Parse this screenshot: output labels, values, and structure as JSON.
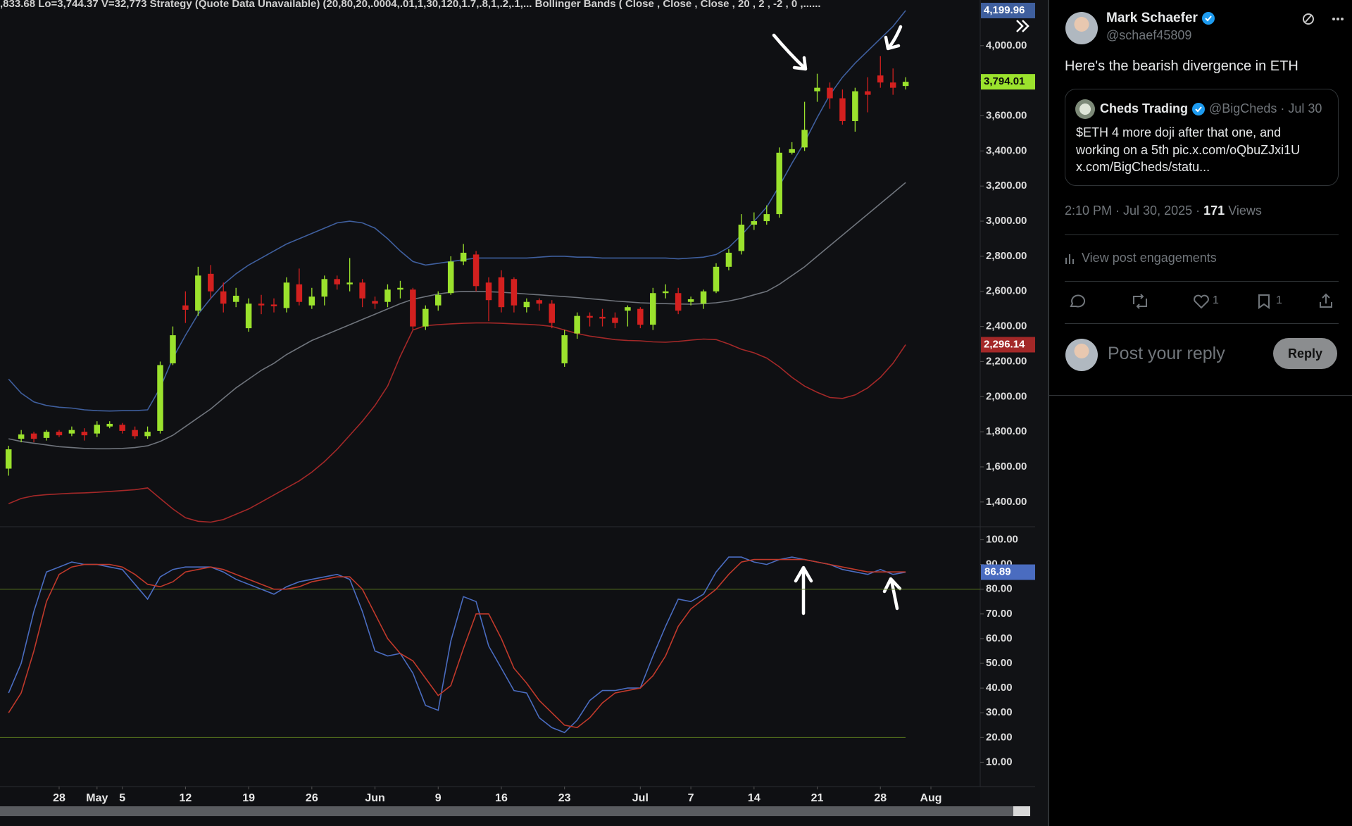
{
  "header": {
    "status": ",833.68  Lo=3,744.37  V=32,773  Strategy (Quote Data Unavailable) (20,80,20,.0004,.01,1,30,120,1.7,.8,1,.2,.1,...   Bollinger Bands ( Close , Close , Close , 20 , 2 , -2 , 0 ,......"
  },
  "chart_data": [
    {
      "type": "candlestick",
      "up_color": "#9be22d",
      "down_color": "#d3201f",
      "xlim": [
        -0.68,
        76.9
      ],
      "ylim": [
        1263,
        4260
      ],
      "yticks": [
        {
          "value": 1400,
          "label": "1,400.00"
        },
        {
          "value": 1600,
          "label": "1,600.00"
        },
        {
          "value": 1800,
          "label": "1,800.00"
        },
        {
          "value": 2000,
          "label": "2,000.00"
        },
        {
          "value": 2200,
          "label": "2,200.00"
        },
        {
          "value": 2400,
          "label": "2,400.00"
        },
        {
          "value": 2600,
          "label": "2,600.00"
        },
        {
          "value": 2800,
          "label": "2,800.00"
        },
        {
          "value": 3000,
          "label": "3,000.00"
        },
        {
          "value": 3200,
          "label": "3,200.00"
        },
        {
          "value": 3400,
          "label": "3,400.00"
        },
        {
          "value": 3600,
          "label": "3,600.00"
        },
        {
          "value": 3800,
          "label": "3,800.00"
        },
        {
          "value": 4000,
          "label": "4,000.00"
        }
      ],
      "open": [
        1590,
        1760,
        1790,
        1765,
        1800,
        1790,
        1800,
        1790,
        1830,
        1840,
        1810,
        1775,
        1805,
        2190,
        2520,
        2490,
        2700,
        2600,
        2540,
        2390,
        2530,
        2525,
        2505,
        2640,
        2520,
        2570,
        2670,
        2640,
        2650,
        2545,
        2540,
        2610,
        2610,
        2400,
        2520,
        2590,
        2770,
        2810,
        2650,
        2680,
        2670,
        2510,
        2550,
        2530,
        2190,
        2360,
        2460,
        2455,
        2450,
        2490,
        2500,
        2410,
        2590,
        2590,
        2540,
        2530,
        2600,
        2740,
        2830,
        2980,
        3000,
        3040,
        3390,
        3420,
        3740,
        3760,
        3700,
        3570,
        3740,
        3830,
        3790,
        3770
      ],
      "high": [
        1720,
        1810,
        1800,
        1810,
        1810,
        1830,
        1820,
        1860,
        1860,
        1850,
        1830,
        1830,
        2200,
        2400,
        2600,
        2740,
        2750,
        2650,
        2620,
        2560,
        2580,
        2560,
        2680,
        2730,
        2620,
        2690,
        2690,
        2790,
        2670,
        2570,
        2640,
        2660,
        2620,
        2520,
        2600,
        2800,
        2870,
        2830,
        2680,
        2720,
        2680,
        2560,
        2560,
        2550,
        2380,
        2480,
        2480,
        2500,
        2480,
        2520,
        2510,
        2620,
        2640,
        2620,
        2570,
        2610,
        2760,
        2840,
        3040,
        3050,
        3090,
        3420,
        3450,
        3680,
        3840,
        3790,
        3750,
        3760,
        3820,
        3940,
        3870,
        3820
      ],
      "low": [
        1550,
        1740,
        1740,
        1750,
        1770,
        1775,
        1750,
        1770,
        1820,
        1790,
        1760,
        1760,
        1790,
        2180,
        2420,
        2460,
        2560,
        2480,
        2510,
        2370,
        2470,
        2480,
        2480,
        2520,
        2500,
        2520,
        2610,
        2600,
        2510,
        2500,
        2510,
        2560,
        2380,
        2380,
        2490,
        2580,
        2750,
        2600,
        2430,
        2480,
        2480,
        2480,
        2490,
        2390,
        2170,
        2330,
        2400,
        2400,
        2390,
        2400,
        2390,
        2380,
        2560,
        2470,
        2520,
        2500,
        2590,
        2720,
        2810,
        2950,
        2980,
        3020,
        3380,
        3400,
        3680,
        3640,
        3550,
        3510,
        3620,
        3760,
        3720,
        3750
      ],
      "close": [
        1700,
        1785,
        1760,
        1800,
        1780,
        1810,
        1780,
        1840,
        1845,
        1805,
        1775,
        1800,
        2180,
        2350,
        2495,
        2690,
        2600,
        2530,
        2575,
        2530,
        2520,
        2515,
        2650,
        2540,
        2570,
        2670,
        2640,
        2650,
        2560,
        2530,
        2610,
        2620,
        2400,
        2500,
        2580,
        2770,
        2820,
        2630,
        2550,
        2510,
        2520,
        2540,
        2530,
        2420,
        2350,
        2460,
        2450,
        2445,
        2420,
        2510,
        2410,
        2590,
        2600,
        2490,
        2555,
        2600,
        2740,
        2820,
        2980,
        3000,
        3040,
        3390,
        3410,
        3520,
        3760,
        3700,
        3570,
        3740,
        3720,
        3790,
        3760,
        3794.01
      ],
      "last_label": "3,794.01",
      "overlays": [
        {
          "color": "#3f5f9e",
          "last_label": "4,199.96",
          "values": [
            2100,
            2020,
            1970,
            1950,
            1940,
            1935,
            1925,
            1920,
            1918,
            1920,
            1920,
            1925,
            2050,
            2220,
            2350,
            2470,
            2560,
            2640,
            2700,
            2750,
            2790,
            2830,
            2870,
            2900,
            2930,
            2960,
            2990,
            3000,
            2990,
            2960,
            2900,
            2830,
            2770,
            2750,
            2760,
            2770,
            2780,
            2790,
            2790,
            2790,
            2790,
            2790,
            2795,
            2800,
            2800,
            2795,
            2795,
            2790,
            2790,
            2790,
            2790,
            2790,
            2790,
            2785,
            2790,
            2795,
            2810,
            2850,
            2920,
            3000,
            3080,
            3200,
            3330,
            3450,
            3590,
            3720,
            3820,
            3900,
            3970,
            4040,
            4110,
            4199.96
          ]
        },
        {
          "color": "#6f747c",
          "values": [
            1760,
            1745,
            1735,
            1725,
            1715,
            1710,
            1705,
            1703,
            1703,
            1705,
            1710,
            1720,
            1745,
            1780,
            1830,
            1880,
            1930,
            1990,
            2050,
            2100,
            2150,
            2190,
            2240,
            2280,
            2320,
            2350,
            2380,
            2410,
            2440,
            2470,
            2500,
            2530,
            2555,
            2570,
            2585,
            2595,
            2600,
            2600,
            2598,
            2595,
            2590,
            2585,
            2580,
            2575,
            2570,
            2565,
            2558,
            2552,
            2545,
            2540,
            2535,
            2532,
            2530,
            2528,
            2527,
            2530,
            2535,
            2545,
            2560,
            2580,
            2600,
            2640,
            2690,
            2740,
            2800,
            2860,
            2920,
            2980,
            3040,
            3100,
            3160,
            3220
          ]
        },
        {
          "color": "#a32828",
          "last_label": "2,296.14",
          "values": [
            1390,
            1420,
            1435,
            1442,
            1446,
            1450,
            1452,
            1455,
            1460,
            1465,
            1470,
            1480,
            1420,
            1360,
            1310,
            1290,
            1285,
            1300,
            1330,
            1360,
            1400,
            1440,
            1480,
            1520,
            1570,
            1630,
            1700,
            1780,
            1860,
            1950,
            2060,
            2230,
            2380,
            2405,
            2410,
            2415,
            2418,
            2420,
            2420,
            2418,
            2415,
            2412,
            2408,
            2400,
            2380,
            2360,
            2345,
            2335,
            2325,
            2320,
            2318,
            2312,
            2310,
            2315,
            2322,
            2328,
            2325,
            2300,
            2270,
            2250,
            2220,
            2170,
            2110,
            2060,
            2025,
            1995,
            1990,
            2010,
            2050,
            2110,
            2190,
            2296.14
          ]
        }
      ]
    },
    {
      "type": "line",
      "xlim": [
        -0.68,
        76.9
      ],
      "ylim": [
        1,
        105
      ],
      "yticks": [
        {
          "value": 10,
          "label": "10.00"
        },
        {
          "value": 20,
          "label": "20.00"
        },
        {
          "value": 30,
          "label": "30.00"
        },
        {
          "value": 40,
          "label": "40.00"
        },
        {
          "value": 50,
          "label": "50.00"
        },
        {
          "value": 60,
          "label": "60.00"
        },
        {
          "value": 70,
          "label": "70.00"
        },
        {
          "value": 80,
          "label": "80.00"
        },
        {
          "value": 90,
          "label": "90.00"
        },
        {
          "value": 100,
          "label": "100.00"
        }
      ],
      "xticks": [
        {
          "value": 4,
          "label": "28"
        },
        {
          "value": 7,
          "label": "May"
        },
        {
          "value": 9,
          "label": "5"
        },
        {
          "value": 14,
          "label": "12"
        },
        {
          "value": 19,
          "label": "19"
        },
        {
          "value": 24,
          "label": "26"
        },
        {
          "value": 29,
          "label": "Jun"
        },
        {
          "value": 34,
          "label": "9"
        },
        {
          "value": 39,
          "label": "16"
        },
        {
          "value": 44,
          "label": "23"
        },
        {
          "value": 50,
          "label": "Jul"
        },
        {
          "value": 54,
          "label": "7"
        },
        {
          "value": 59,
          "label": "14"
        },
        {
          "value": 64,
          "label": "21"
        },
        {
          "value": 69,
          "label": "28"
        },
        {
          "value": 73,
          "label": "Aug"
        }
      ],
      "hlines": [
        80,
        20
      ],
      "hline_color": "#5a7a1e",
      "series": [
        {
          "color": "#4a6cc0",
          "values": [
            38,
            50,
            71,
            87,
            89,
            91,
            90,
            90,
            89,
            88,
            82,
            76,
            85,
            88,
            89,
            89,
            89,
            87,
            84,
            82,
            80,
            78,
            81,
            83,
            84,
            85,
            86,
            84,
            71,
            55,
            53,
            54,
            46,
            33,
            31,
            59,
            77,
            75,
            57,
            48,
            39,
            38,
            28,
            24,
            22,
            27,
            35,
            39,
            39,
            40,
            40,
            53,
            65,
            76,
            75,
            78,
            87,
            93,
            93,
            91,
            90,
            92,
            93,
            92,
            91,
            90,
            88,
            87,
            86,
            88,
            86,
            86.89
          ]
        },
        {
          "color": "#c0392b",
          "values": [
            30,
            38,
            55,
            75,
            86,
            89,
            90,
            90,
            90,
            89,
            86,
            82,
            81,
            83,
            87,
            88,
            89,
            88,
            86,
            84,
            82,
            80,
            80,
            81,
            83,
            84,
            85,
            85,
            80,
            70,
            60,
            54,
            51,
            44,
            37,
            41,
            56,
            70,
            70,
            60,
            48,
            42,
            35,
            30,
            25,
            24,
            28,
            34,
            38,
            39,
            40,
            45,
            53,
            65,
            72,
            76,
            80,
            86,
            91,
            92,
            92,
            92,
            92,
            92,
            91,
            90,
            89,
            88,
            87,
            87,
            87,
            87
          ]
        }
      ]
    }
  ],
  "post": {
    "author": "Mark Schaefer",
    "handle": "@schaef45809",
    "text": "Here's the bearish divergence in ETH",
    "quote": {
      "author": "Cheds Trading",
      "handle": "@BigCheds",
      "date": "· Jul 30",
      "lines": [
        "$ETH 4 more doji after that one, and",
        "working on a 5th pic.x.com/oQbuZJxi1U",
        "x.com/BigCheds/statu..."
      ]
    },
    "timestamp": "2:10 PM · Jul 30, 2025 ·",
    "views": 171,
    "views_label": "Views",
    "engagements": "View post engagements",
    "likes": 1,
    "bookmarks": 1,
    "reply_placeholder": "Post your reply",
    "reply_button": "Reply"
  }
}
